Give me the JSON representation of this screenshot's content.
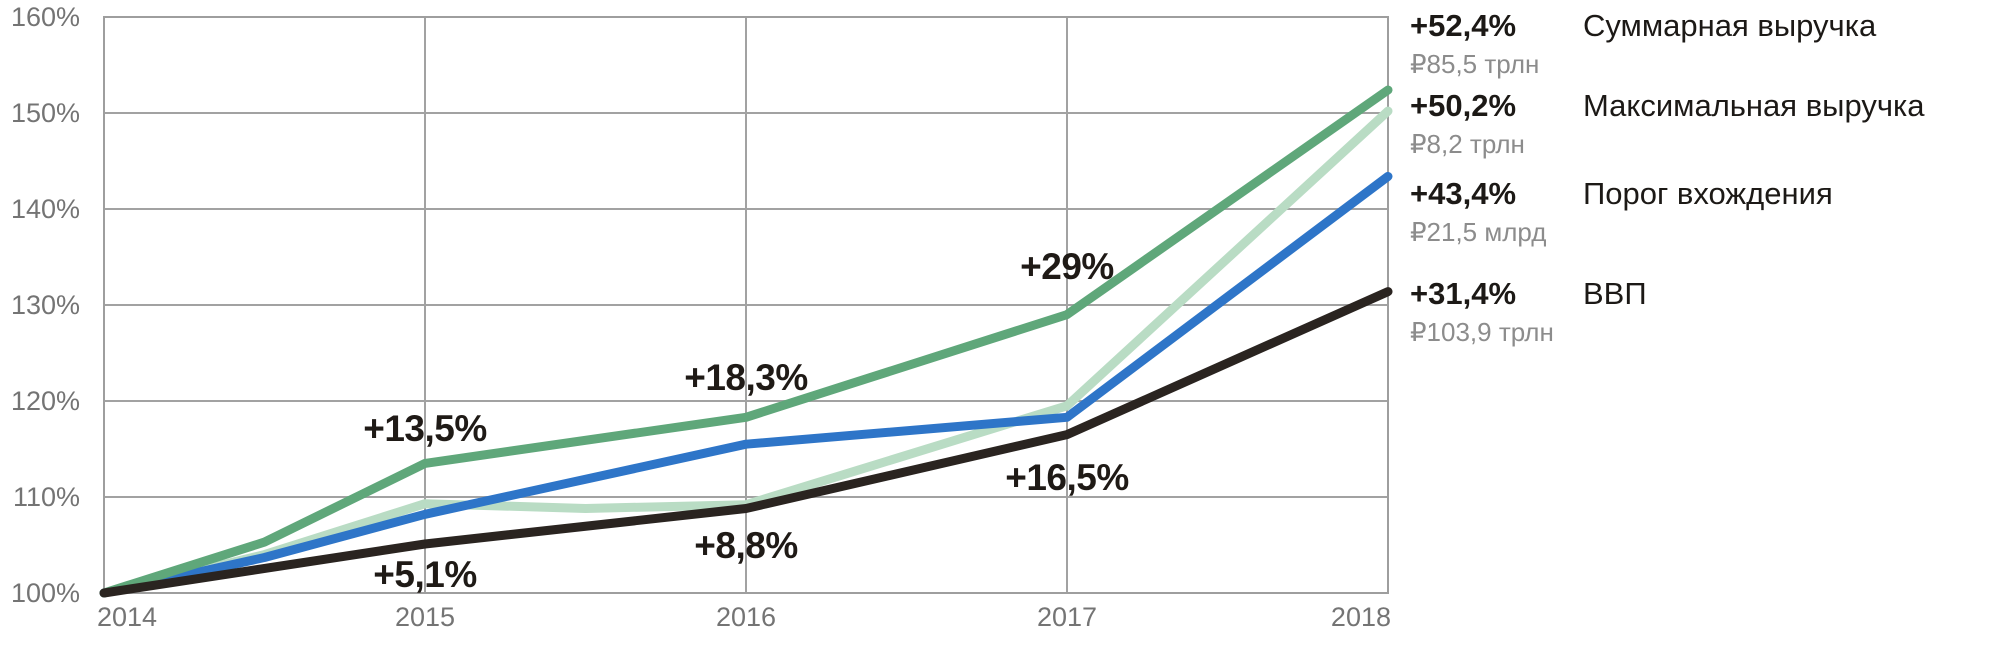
{
  "chart_data": {
    "type": "line",
    "x_years": [
      2014,
      2015,
      2016,
      2017,
      2018
    ],
    "x_tick_labels": [
      "2014",
      "2015",
      "2016",
      "2017",
      "2018"
    ],
    "y_axis": {
      "min": 100,
      "max": 160,
      "tick_values": [
        160,
        150,
        140,
        130,
        120,
        110,
        100
      ],
      "tick_labels": [
        "160%",
        "150%",
        "140%",
        "130%",
        "120%",
        "110%",
        "100%"
      ]
    },
    "grid": {
      "show": true,
      "color": "#a2a2a2",
      "frame_color": "#9e9e9e"
    },
    "legend_position": "right",
    "series": [
      {
        "id": "total_revenue",
        "name": "Суммарная выручка",
        "color": "#5fa77a",
        "values": [
          100,
          113.5,
          118.3,
          129,
          152.4
        ],
        "shape_points": [
          [
            2014,
            100
          ],
          [
            2014.5,
            105.3
          ],
          [
            2015,
            113.5
          ],
          [
            2016,
            118.3
          ],
          [
            2017,
            129
          ],
          [
            2018,
            152.4
          ]
        ],
        "change_label": "+52,4%",
        "value_label": "₽85,5 трлн"
      },
      {
        "id": "max_revenue",
        "name": "Максимальная выручка",
        "color": "#b9dcc4",
        "values": [
          100,
          109.3,
          109.2,
          119.5,
          150.2
        ],
        "shape_points": [
          [
            2014,
            100
          ],
          [
            2014.5,
            104
          ],
          [
            2015,
            109.3
          ],
          [
            2015.5,
            108.8
          ],
          [
            2016,
            109.2
          ],
          [
            2017,
            119.5
          ],
          [
            2018,
            150.2
          ]
        ],
        "change_label": "+50,2%",
        "value_label": "₽8,2 трлн"
      },
      {
        "id": "entry_threshold",
        "name": "Порог вхождения",
        "color": "#2e75c8",
        "values": [
          100,
          108.2,
          115.5,
          118.3,
          143.4
        ],
        "shape_points": [
          [
            2014,
            100
          ],
          [
            2014.5,
            103.7
          ],
          [
            2015,
            108.2
          ],
          [
            2016,
            115.5
          ],
          [
            2017,
            118.3
          ],
          [
            2018,
            143.4
          ]
        ],
        "change_label": "+43,4%",
        "value_label": "₽21,5 млрд"
      },
      {
        "id": "gdp",
        "name": "ВВП",
        "color": "#2a2420",
        "values": [
          100,
          105.1,
          108.8,
          116.5,
          131.4
        ],
        "shape_points": [
          [
            2014,
            100
          ],
          [
            2015,
            105.1
          ],
          [
            2016,
            108.8
          ],
          [
            2017,
            116.5
          ],
          [
            2018,
            131.4
          ]
        ],
        "change_label": "+31,4%",
        "value_label": "₽103,9 трлн"
      }
    ],
    "annotations": [
      {
        "label": "+13,5%",
        "year": 2015,
        "value": 113.5,
        "dy": -34
      },
      {
        "label": "+18,3%",
        "year": 2016,
        "value": 118.3,
        "dy": -39
      },
      {
        "label": "+29%",
        "year": 2017,
        "value": 129,
        "dy": -48
      },
      {
        "label": "+5,1%",
        "year": 2015,
        "value": 105.1,
        "dy": 31
      },
      {
        "label": "+8,8%",
        "year": 2016,
        "value": 108.8,
        "dy": 37
      },
      {
        "label": "+16,5%",
        "year": 2017,
        "value": 116.5,
        "dy": 43
      }
    ]
  }
}
